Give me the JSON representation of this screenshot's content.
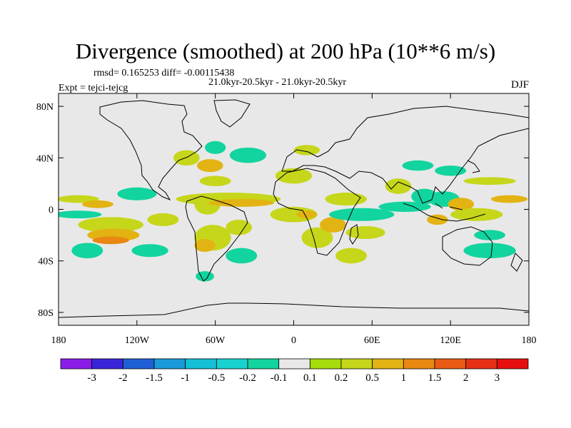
{
  "chart_data": {
    "type": "heatmap",
    "title": "Divergence (smoothed) at 200 hPa (10**6 m/s)",
    "stats_line": "rmsd= 0.165253 diff= -0.00115438",
    "period_line": "21.0kyr-20.5kyr - 21.0kyr-20.5kyr",
    "experiment_label": "Expt = tejci-tejcg",
    "season": "DJF",
    "x_ticks": [
      "180",
      "120W",
      "60W",
      "0",
      "60E",
      "120E",
      "180"
    ],
    "x_tick_values": [
      -180,
      -120,
      -60,
      0,
      60,
      120,
      180
    ],
    "y_ticks": [
      "80N",
      "40N",
      "0",
      "40S",
      "80S"
    ],
    "y_tick_values": [
      80,
      40,
      0,
      -40,
      -80
    ],
    "xlim": [
      -180,
      180
    ],
    "ylim": [
      -90,
      90
    ],
    "colorbar_labels": [
      "-3",
      "-2",
      "-1.5",
      "-1",
      "-0.5",
      "-0.2",
      "-0.1",
      "0.1",
      "0.2",
      "0.5",
      "1",
      "1.5",
      "2",
      "3"
    ],
    "colorbar_colors": [
      "#8a1ee8",
      "#3a24d8",
      "#1f5fd6",
      "#1a9ad8",
      "#14c0d6",
      "#18d2d0",
      "#12d49e",
      "#e8e8e8",
      "#a6dc0e",
      "#c6d61a",
      "#e2b312",
      "#e88812",
      "#ea5a14",
      "#e63016",
      "#e60f0f"
    ],
    "field_patches": [
      {
        "lon": -165,
        "lat": 8,
        "rlon": 16,
        "rlat": 3,
        "level": "0.2"
      },
      {
        "lon": -150,
        "lat": 4,
        "rlon": 12,
        "rlat": 3,
        "level": "0.5"
      },
      {
        "lon": -165,
        "lat": -4,
        "rlon": 18,
        "rlat": 3,
        "level": "-0.2"
      },
      {
        "lon": -120,
        "lat": 12,
        "rlon": 15,
        "rlat": 5,
        "level": "-0.2"
      },
      {
        "lon": -140,
        "lat": -12,
        "rlon": 25,
        "rlat": 6,
        "level": "0.2"
      },
      {
        "lon": -138,
        "lat": -20,
        "rlon": 20,
        "rlat": 5,
        "level": "0.5"
      },
      {
        "lon": -140,
        "lat": -24,
        "rlon": 14,
        "rlat": 3,
        "level": "1"
      },
      {
        "lon": -158,
        "lat": -32,
        "rlon": 12,
        "rlat": 6,
        "level": "-0.2"
      },
      {
        "lon": -110,
        "lat": -32,
        "rlon": 14,
        "rlat": 5,
        "level": "-0.2"
      },
      {
        "lon": -100,
        "lat": -8,
        "rlon": 12,
        "rlat": 5,
        "level": "0.2"
      },
      {
        "lon": -82,
        "lat": 40,
        "rlon": 10,
        "rlat": 6,
        "level": "0.2"
      },
      {
        "lon": -64,
        "lat": 34,
        "rlon": 10,
        "rlat": 5,
        "level": "0.5"
      },
      {
        "lon": -60,
        "lat": 48,
        "rlon": 8,
        "rlat": 5,
        "level": "-0.2"
      },
      {
        "lon": -35,
        "lat": 42,
        "rlon": 14,
        "rlat": 6,
        "level": "-0.2"
      },
      {
        "lon": -60,
        "lat": 22,
        "rlon": 12,
        "rlat": 4,
        "level": "0.2"
      },
      {
        "lon": -66,
        "lat": 4,
        "rlon": 10,
        "rlat": 8,
        "level": "0.2"
      },
      {
        "lon": -50,
        "lat": 8,
        "rlon": 40,
        "rlat": 5,
        "level": "0.2"
      },
      {
        "lon": -40,
        "lat": 5,
        "rlon": 25,
        "rlat": 3,
        "level": "0.5"
      },
      {
        "lon": -62,
        "lat": -22,
        "rlon": 14,
        "rlat": 10,
        "level": "0.2"
      },
      {
        "lon": -68,
        "lat": -28,
        "rlon": 8,
        "rlat": 5,
        "level": "0.5"
      },
      {
        "lon": -42,
        "lat": -14,
        "rlon": 10,
        "rlat": 6,
        "level": "0.2"
      },
      {
        "lon": -40,
        "lat": -36,
        "rlon": 12,
        "rlat": 6,
        "level": "-0.2"
      },
      {
        "lon": -68,
        "lat": -52,
        "rlon": 7,
        "rlat": 4,
        "level": "-0.2"
      },
      {
        "lon": 0,
        "lat": 26,
        "rlon": 14,
        "rlat": 6,
        "level": "0.2"
      },
      {
        "lon": 10,
        "lat": 46,
        "rlon": 10,
        "rlat": 4,
        "level": "0.2"
      },
      {
        "lon": 0,
        "lat": -4,
        "rlon": 18,
        "rlat": 6,
        "level": "0.2"
      },
      {
        "lon": 10,
        "lat": -4,
        "rlon": 8,
        "rlat": 3,
        "level": "0.5"
      },
      {
        "lon": 18,
        "lat": -22,
        "rlon": 12,
        "rlat": 8,
        "level": "0.2"
      },
      {
        "lon": 30,
        "lat": -12,
        "rlon": 10,
        "rlat": 6,
        "level": "0.5"
      },
      {
        "lon": 40,
        "lat": 8,
        "rlon": 16,
        "rlat": 5,
        "level": "0.2"
      },
      {
        "lon": 52,
        "lat": -4,
        "rlon": 25,
        "rlat": 5,
        "level": "-0.2"
      },
      {
        "lon": 55,
        "lat": -18,
        "rlon": 15,
        "rlat": 5,
        "level": "0.2"
      },
      {
        "lon": 44,
        "lat": -36,
        "rlon": 12,
        "rlat": 6,
        "level": "0.2"
      },
      {
        "lon": 80,
        "lat": 18,
        "rlon": 10,
        "rlat": 6,
        "level": "0.2"
      },
      {
        "lon": 95,
        "lat": 34,
        "rlon": 12,
        "rlat": 4,
        "level": "-0.2"
      },
      {
        "lon": 85,
        "lat": 2,
        "rlon": 20,
        "rlat": 4,
        "level": "-0.2"
      },
      {
        "lon": 100,
        "lat": 10,
        "rlon": 10,
        "rlat": 6,
        "level": "-0.2"
      },
      {
        "lon": 115,
        "lat": 8,
        "rlon": 12,
        "rlat": 6,
        "level": "-0.2"
      },
      {
        "lon": 110,
        "lat": -8,
        "rlon": 8,
        "rlat": 4,
        "level": "0.5"
      },
      {
        "lon": 128,
        "lat": 4,
        "rlon": 10,
        "rlat": 5,
        "level": "0.5"
      },
      {
        "lon": 140,
        "lat": -4,
        "rlon": 20,
        "rlat": 5,
        "level": "0.2"
      },
      {
        "lon": 120,
        "lat": 30,
        "rlon": 12,
        "rlat": 4,
        "level": "-0.2"
      },
      {
        "lon": 150,
        "lat": 22,
        "rlon": 20,
        "rlat": 3,
        "level": "0.2"
      },
      {
        "lon": 165,
        "lat": 8,
        "rlon": 14,
        "rlat": 3,
        "level": "0.5"
      },
      {
        "lon": 150,
        "lat": -20,
        "rlon": 12,
        "rlat": 4,
        "level": "-0.2"
      },
      {
        "lon": 150,
        "lat": -32,
        "rlon": 20,
        "rlat": 6,
        "level": "-0.2"
      }
    ]
  }
}
